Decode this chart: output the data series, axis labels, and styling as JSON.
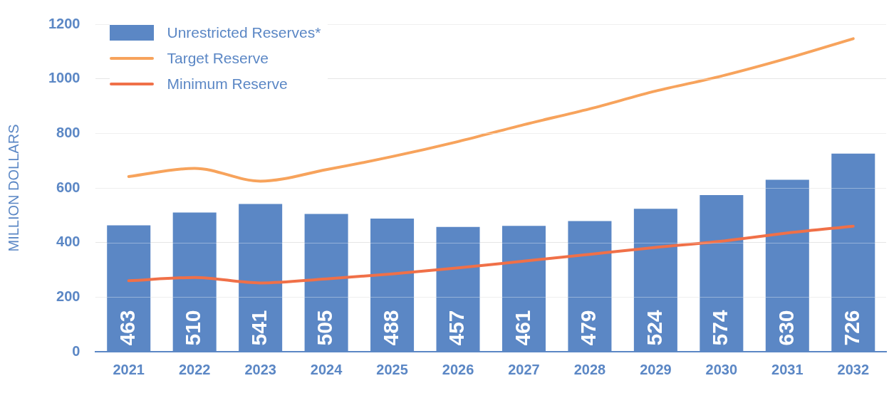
{
  "chart_data": {
    "type": "bar",
    "ylabel": "MILLION DOLLARS",
    "categories": [
      "2021",
      "2022",
      "2023",
      "2024",
      "2025",
      "2026",
      "2027",
      "2028",
      "2029",
      "2030",
      "2031",
      "2032"
    ],
    "series": [
      {
        "name": "Unrestricted Reserves*",
        "color": "#5b87c5",
        "values": [
          463,
          510,
          541,
          505,
          488,
          457,
          461,
          479,
          524,
          574,
          630,
          726
        ],
        "value_labels": [
          "463",
          "510",
          "541",
          "505",
          "488",
          "457",
          "461",
          "479",
          "524",
          "574",
          "630",
          "726"
        ]
      },
      {
        "name": "Target Reserve",
        "type": "line",
        "color": "#f7a35c",
        "values": [
          642,
          672,
          625,
          667,
          715,
          770,
          832,
          890,
          955,
          1010,
          1075,
          1147
        ]
      },
      {
        "name": "Minimum Reserve",
        "type": "line",
        "color": "#f07048",
        "values": [
          260,
          272,
          252,
          267,
          285,
          307,
          332,
          357,
          382,
          405,
          435,
          460
        ]
      }
    ],
    "ylim": [
      0,
      1200
    ],
    "yticks": [
      0,
      200,
      400,
      600,
      800,
      1000,
      1200
    ],
    "grid": "y",
    "legend": "top left",
    "marker": "none"
  }
}
